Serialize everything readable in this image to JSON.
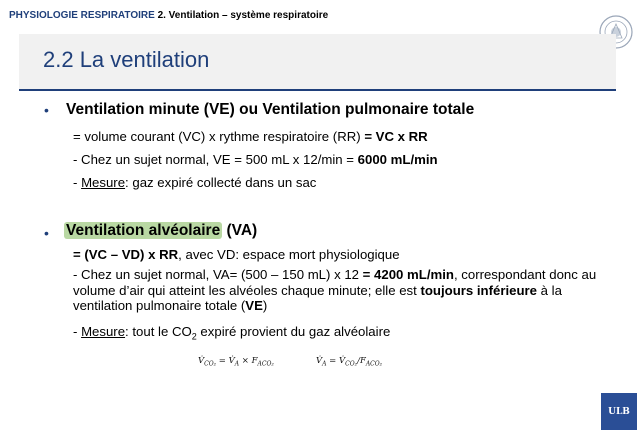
{
  "header": {
    "section": "PHYSIOLOGIE RESPIRATOIRE",
    "subsection": "2. Ventilation – système respiratoire"
  },
  "title": "2.2 La ventilation",
  "bullet_char": "•",
  "block1": {
    "heading": "Ventilation minute (VE) ou Ventilation pulmonaire totale",
    "line1_a": "= volume courant (VC) x rythme respiratoire (RR) ",
    "line1_b": "= VC x RR",
    "line2_a": "- Chez un sujet normal, VE = 500 mL x 12/min = ",
    "line2_b": "6000 mL/min",
    "line3_prefix": "- ",
    "line3_label": "Mesure",
    "line3_rest": ": gaz expiré collecté dans un sac"
  },
  "block2": {
    "heading_highlight": "Ventilation alvéolaire",
    "heading_rest": " (VA)",
    "line1_a": "= (VC – VD) x RR",
    "line1_b": ", avec VD: espace mort physiologique",
    "line2_a": "- Chez un sujet normal, VA= (500 – 150 mL) x 12 ",
    "line2_b": "= 4200 mL/min",
    "line2_c": ", correspondant donc au volume d’air qui atteint les alvéoles chaque minute; elle est ",
    "line2_d": "toujours inférieure",
    "line2_e": " à la ventilation pulmonaire totale (",
    "line2_f": "VE",
    "line2_g": ")",
    "line3_prefix": "- ",
    "line3_label": "Mesure",
    "line3_rest_a": ": tout le CO",
    "line3_sub": "2",
    "line3_rest_b": " expiré provient du gaz alvéolaire"
  },
  "formulas": {
    "f1_lhs": "V̇",
    "f1_lhs_sub": "CO₂",
    "f1_mid": " = V̇",
    "f1_mid_sub": "A",
    "f1_times": " × F",
    "f1_times_sub": "ACO₂",
    "f2_lhs": "V̇",
    "f2_lhs_sub": "A",
    "f2_mid": " = V̇",
    "f2_mid_sub": "CO₂",
    "f2_div": "/F",
    "f2_div_sub": "ACO₂"
  },
  "logo_text": "ULB",
  "colors": {
    "accent": "#1f3f7a",
    "highlight": "#b9d8a3",
    "title_band": "#f1f1f1",
    "logo_bg": "#2a4e96"
  }
}
